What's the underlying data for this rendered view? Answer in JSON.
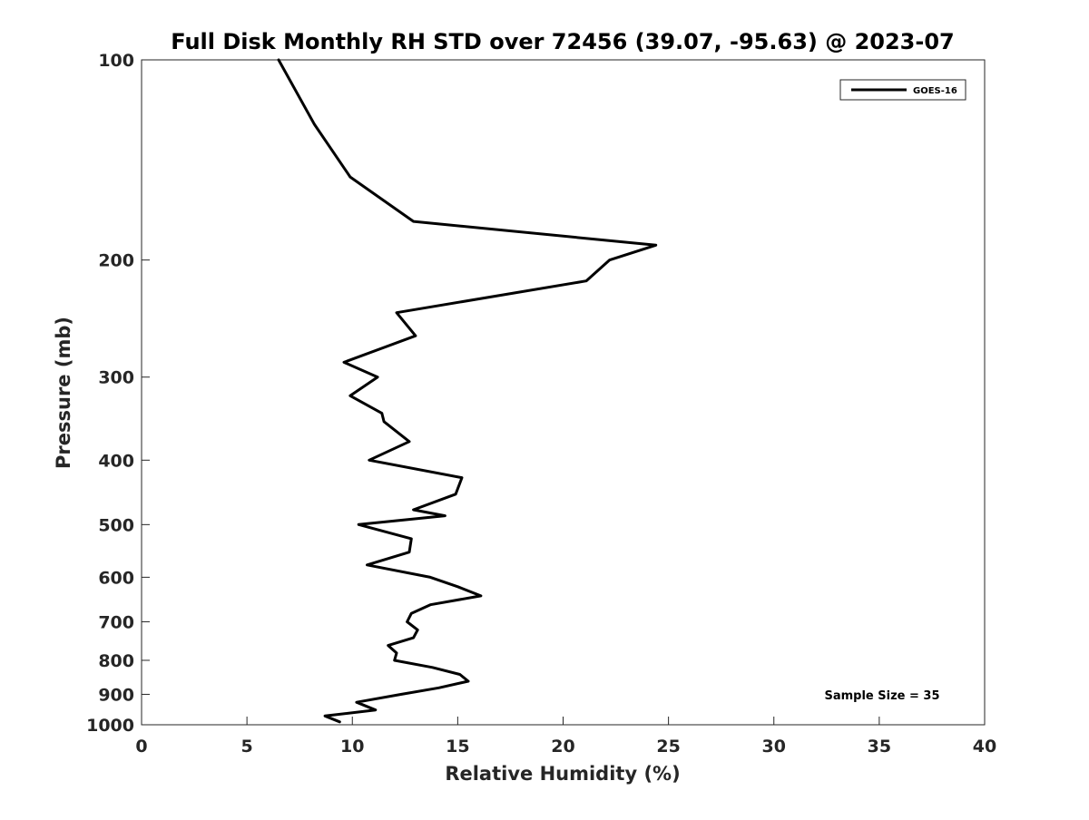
{
  "chart_data": {
    "type": "line",
    "title": "Full Disk Monthly RH STD over 72456 (39.07, -95.63) @ 2023-07",
    "xlabel": "Relative Humidity (%)",
    "ylabel": "Pressure (mb)",
    "xlim": [
      0,
      40
    ],
    "ylim": [
      100,
      1000
    ],
    "y_scale": "log",
    "y_reversed": true,
    "grid": false,
    "legend_position": "top-right",
    "x_ticks": [
      "0",
      "5",
      "10",
      "15",
      "20",
      "25",
      "30",
      "35",
      "40"
    ],
    "y_ticks": [
      "100",
      "200",
      "300",
      "400",
      "500",
      "600",
      "700",
      "800",
      "900",
      "1000"
    ],
    "annotation": "Sample Size = 35",
    "line_color": "#000000",
    "series": [
      {
        "name": "GOES-16",
        "points": [
          [
            6.5,
            100
          ],
          [
            8.2,
            125
          ],
          [
            9.9,
            150
          ],
          [
            12.9,
            175
          ],
          [
            24.4,
            190
          ],
          [
            22.2,
            200
          ],
          [
            21.1,
            215
          ],
          [
            12.1,
            240
          ],
          [
            13.0,
            260
          ],
          [
            9.6,
            285
          ],
          [
            11.2,
            300
          ],
          [
            9.9,
            320
          ],
          [
            11.4,
            340
          ],
          [
            11.5,
            350
          ],
          [
            12.7,
            375
          ],
          [
            10.8,
            400
          ],
          [
            15.2,
            425
          ],
          [
            14.9,
            450
          ],
          [
            12.9,
            475
          ],
          [
            14.4,
            485
          ],
          [
            10.3,
            500
          ],
          [
            12.8,
            525
          ],
          [
            12.7,
            550
          ],
          [
            10.7,
            575
          ],
          [
            13.7,
            600
          ],
          [
            15.0,
            620
          ],
          [
            16.1,
            640
          ],
          [
            13.7,
            660
          ],
          [
            12.8,
            680
          ],
          [
            12.6,
            700
          ],
          [
            13.1,
            720
          ],
          [
            12.9,
            740
          ],
          [
            11.7,
            760
          ],
          [
            12.1,
            780
          ],
          [
            12.0,
            800
          ],
          [
            13.8,
            820
          ],
          [
            15.1,
            840
          ],
          [
            15.5,
            860
          ],
          [
            14.1,
            880
          ],
          [
            12.3,
            900
          ],
          [
            10.2,
            925
          ],
          [
            11.1,
            950
          ],
          [
            8.7,
            970
          ],
          [
            9.4,
            990
          ]
        ]
      }
    ]
  }
}
